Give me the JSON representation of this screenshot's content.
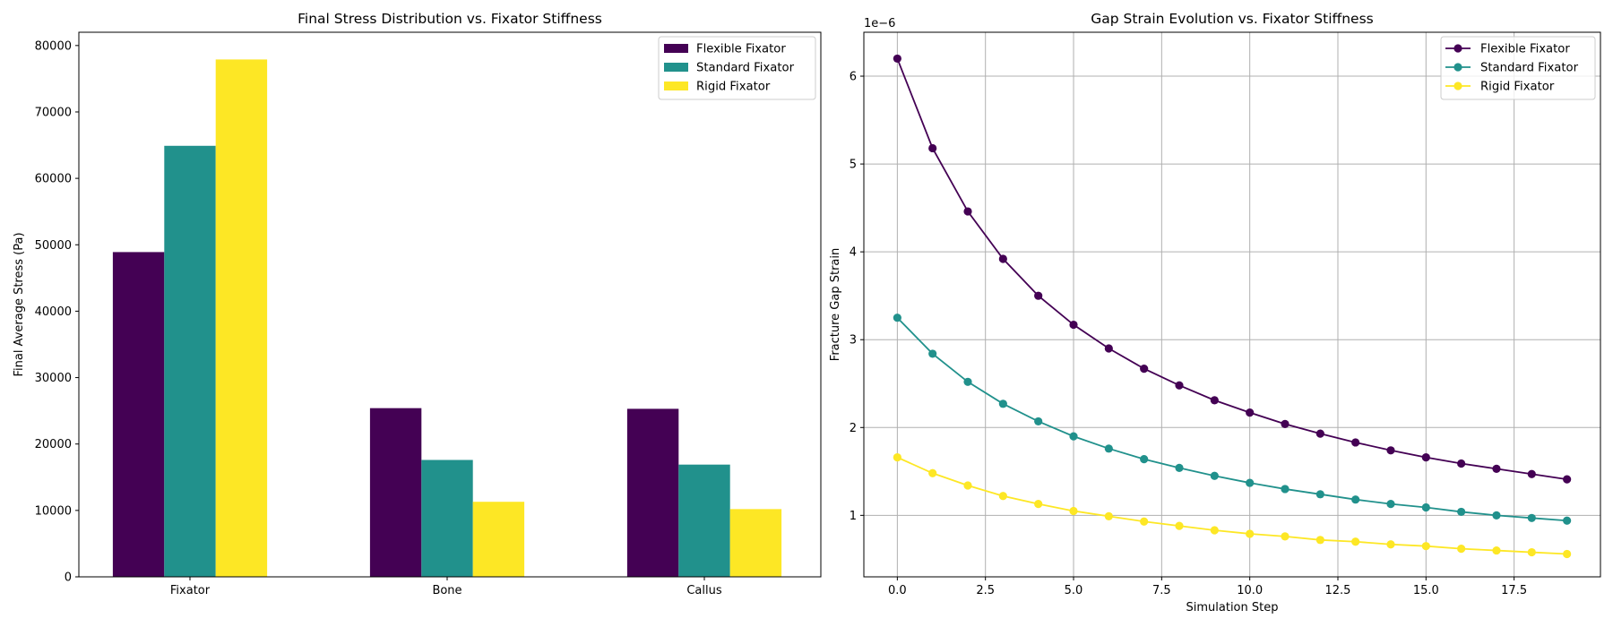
{
  "colors": {
    "flexible": "#440154",
    "standard": "#21918c",
    "rigid": "#fde725",
    "grid": "#b0b0b0"
  },
  "chart_data": [
    {
      "type": "bar",
      "title": "Final Stress Distribution vs. Fixator Stiffness",
      "xlabel": "",
      "ylabel": "Final Average Stress (Pa)",
      "categories": [
        "Fixator",
        "Bone",
        "Callus"
      ],
      "ylim": [
        0,
        82000
      ],
      "yticks": [
        0,
        10000,
        20000,
        30000,
        40000,
        50000,
        60000,
        70000,
        80000
      ],
      "ytick_labels": [
        "0",
        "10000",
        "20000",
        "30000",
        "40000",
        "50000",
        "60000",
        "70000",
        "80000"
      ],
      "grid": false,
      "legend_position": "top-right",
      "series": [
        {
          "name": "Flexible Fixator",
          "color_key": "flexible",
          "values": [
            48900,
            25400,
            25300
          ]
        },
        {
          "name": "Standard Fixator",
          "color_key": "standard",
          "values": [
            64900,
            17600,
            16900
          ]
        },
        {
          "name": "Rigid Fixator",
          "color_key": "rigid",
          "values": [
            77900,
            11300,
            10200
          ]
        }
      ]
    },
    {
      "type": "line",
      "title": "Gap Strain Evolution vs. Fixator Stiffness",
      "xlabel": "Simulation Step",
      "ylabel": "Fracture Gap Strain",
      "offset_label": "1e−6",
      "x": [
        0,
        1,
        2,
        3,
        4,
        5,
        6,
        7,
        8,
        9,
        10,
        11,
        12,
        13,
        14,
        15,
        16,
        17,
        18,
        19
      ],
      "xlim": [
        -0.95,
        19.95
      ],
      "ylim": [
        0.3,
        6.5
      ],
      "xticks": [
        0,
        2.5,
        5,
        7.5,
        10,
        12.5,
        15,
        17.5
      ],
      "xtick_labels": [
        "0.0",
        "2.5",
        "5.0",
        "7.5",
        "10.0",
        "12.5",
        "15.0",
        "17.5"
      ],
      "yticks": [
        1,
        2,
        3,
        4,
        5,
        6
      ],
      "ytick_labels": [
        "1",
        "2",
        "3",
        "4",
        "5",
        "6"
      ],
      "grid": true,
      "legend_position": "top-right",
      "series": [
        {
          "name": "Flexible Fixator",
          "color_key": "flexible",
          "values": [
            6.2,
            5.18,
            4.46,
            3.92,
            3.5,
            3.17,
            2.9,
            2.67,
            2.48,
            2.31,
            2.17,
            2.04,
            1.93,
            1.83,
            1.74,
            1.66,
            1.59,
            1.53,
            1.47,
            1.41
          ]
        },
        {
          "name": "Standard Fixator",
          "color_key": "standard",
          "values": [
            3.25,
            2.84,
            2.52,
            2.27,
            2.07,
            1.9,
            1.76,
            1.64,
            1.54,
            1.45,
            1.37,
            1.3,
            1.24,
            1.18,
            1.13,
            1.09,
            1.04,
            1.0,
            0.97,
            0.94
          ]
        },
        {
          "name": "Rigid Fixator",
          "color_key": "rigid",
          "values": [
            1.66,
            1.48,
            1.34,
            1.22,
            1.13,
            1.05,
            0.99,
            0.93,
            0.88,
            0.83,
            0.79,
            0.76,
            0.72,
            0.7,
            0.67,
            0.65,
            0.62,
            0.6,
            0.58,
            0.56
          ]
        }
      ]
    }
  ]
}
